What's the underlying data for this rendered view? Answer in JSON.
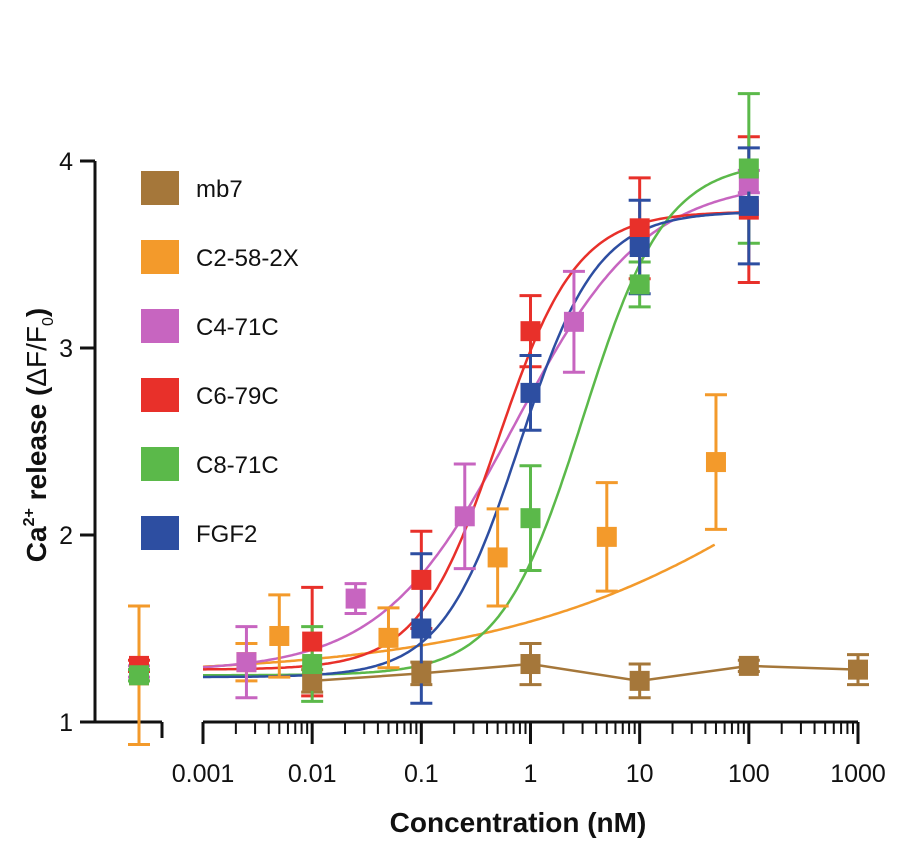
{
  "chart_data": {
    "type": "scatter",
    "title": "",
    "xlabel": "Concentration (nM)",
    "ylabel": {
      "main": "Ca",
      "sup": "2+",
      "rest": " release (",
      "delta": "ΔF/F",
      "sub": "0",
      "close": ")"
    },
    "xscale": "log",
    "xlim": [
      0.001,
      1000
    ],
    "ylim": [
      1,
      4
    ],
    "x_ticks": [
      "0.001",
      "0.01",
      "0.1",
      "1",
      "10",
      "100",
      "1000"
    ],
    "y_ticks": [
      "1",
      "2",
      "3",
      "4"
    ],
    "legend_position": "top-left",
    "grid": false,
    "baseline_segment": "separate zero-concentration point left of the axis break",
    "series": [
      {
        "name": "mb7",
        "color": "#a5773a",
        "baseline": {
          "y": 1.25,
          "err": 0.03
        },
        "points": [
          {
            "x": 0.01,
            "y": 1.22,
            "err": 0.06
          },
          {
            "x": 0.1,
            "y": 1.26,
            "err": 0.06
          },
          {
            "x": 1,
            "y": 1.31,
            "err": 0.11
          },
          {
            "x": 10,
            "y": 1.22,
            "err": 0.09
          },
          {
            "x": 100,
            "y": 1.3,
            "err": 0.03
          },
          {
            "x": 1000,
            "y": 1.28,
            "err": 0.08
          }
        ],
        "fit": {
          "type": "connect"
        }
      },
      {
        "name": "C2-58-2X",
        "color": "#f39a2b",
        "baseline": {
          "y": 1.25,
          "err": 0.37
        },
        "points": [
          {
            "x": 0.0025,
            "y": 1.32,
            "err": 0.1
          },
          {
            "x": 0.005,
            "y": 1.46,
            "err": 0.22
          },
          {
            "x": 0.05,
            "y": 1.45,
            "err": 0.16
          },
          {
            "x": 0.5,
            "y": 1.88,
            "err": 0.26
          },
          {
            "x": 5,
            "y": 1.99,
            "err": 0.29
          },
          {
            "x": 50,
            "y": 2.39,
            "err": 0.36
          }
        ],
        "fit": {
          "type": "sigmoid",
          "bottom": 1.25,
          "top": 3.8,
          "logEC50": 3.2,
          "hill": 0.28
        }
      },
      {
        "name": "C4-71C",
        "color": "#c765c0",
        "baseline": {
          "y": 1.27,
          "err": 0.03
        },
        "points": [
          {
            "x": 0.0025,
            "y": 1.32,
            "err": 0.19
          },
          {
            "x": 0.025,
            "y": 1.66,
            "err": 0.08
          },
          {
            "x": 0.25,
            "y": 2.1,
            "err": 0.28
          },
          {
            "x": 2.5,
            "y": 3.14,
            "err": 0.27
          },
          {
            "x": 100,
            "y": 3.89,
            "err": 0.06
          }
        ],
        "fit": {
          "type": "sigmoid",
          "bottom": 1.27,
          "top": 3.9,
          "logEC50": -0.15,
          "hill": 0.72
        }
      },
      {
        "name": "C6-79C",
        "color": "#e8302a",
        "baseline": {
          "y": 1.3,
          "err": 0.03
        },
        "points": [
          {
            "x": 0.01,
            "y": 1.43,
            "err": 0.29
          },
          {
            "x": 0.1,
            "y": 1.76,
            "err": 0.26
          },
          {
            "x": 1,
            "y": 3.09,
            "err": 0.19
          },
          {
            "x": 10,
            "y": 3.64,
            "err": 0.27
          },
          {
            "x": 100,
            "y": 3.74,
            "err": 0.39
          }
        ],
        "fit": {
          "type": "sigmoid",
          "bottom": 1.28,
          "top": 3.73,
          "logEC50": -0.3,
          "hill": 1.2
        }
      },
      {
        "name": "C8-71C",
        "color": "#5bb94a",
        "baseline": {
          "y": 1.25,
          "err": 0.03
        },
        "points": [
          {
            "x": 0.01,
            "y": 1.31,
            "err": 0.2
          },
          {
            "x": 1,
            "y": 2.09,
            "err": 0.28
          },
          {
            "x": 10,
            "y": 3.34,
            "err": 0.12
          },
          {
            "x": 100,
            "y": 3.96,
            "err": 0.4
          }
        ],
        "fit": {
          "type": "sigmoid",
          "bottom": 1.25,
          "top": 4.0,
          "logEC50": 0.48,
          "hill": 1.15
        }
      },
      {
        "name": "FGF2",
        "color": "#2d4ea1",
        "baseline": null,
        "points": [
          {
            "x": 0.1,
            "y": 1.5,
            "err": 0.4
          },
          {
            "x": 1,
            "y": 2.76,
            "err": 0.2
          },
          {
            "x": 10,
            "y": 3.54,
            "err": 0.25
          },
          {
            "x": 100,
            "y": 3.76,
            "err": 0.31
          }
        ],
        "fit": {
          "type": "sigmoid",
          "bottom": 1.24,
          "top": 3.73,
          "logEC50": -0.1,
          "hill": 1.22
        }
      }
    ]
  }
}
